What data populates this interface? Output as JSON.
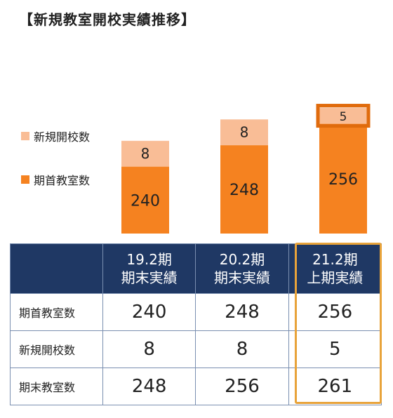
{
  "title": "【新規教室開校実績推移】",
  "colors": {
    "base": "#f58220",
    "new": "#f9bd96",
    "header": "#1f3864",
    "highlight": "#e8a33a",
    "highlight_bar": "#e06b0c"
  },
  "chart_data": {
    "type": "bar",
    "stacked": true,
    "categories": [
      "19.2期",
      "20.2期",
      "21.2期"
    ],
    "series": [
      {
        "name": "期首教室数",
        "values": [
          240,
          248,
          256
        ]
      },
      {
        "name": "新規開校数",
        "values": [
          8,
          8,
          5
        ]
      }
    ],
    "legend_position": "left",
    "grid": false,
    "highlight_index": 2
  },
  "legend": [
    {
      "label": "新規開校数",
      "color": "#f9bd96"
    },
    {
      "label": "期首教室数",
      "color": "#f58220"
    }
  ],
  "table": {
    "headers": [
      [
        "",
        ""
      ],
      [
        "19.2期",
        "期末実績"
      ],
      [
        "20.2期",
        "期末実績"
      ],
      [
        "21.2期",
        "上期実績"
      ]
    ],
    "rows": [
      {
        "label": "期首教室数",
        "values": [
          "240",
          "248",
          "256"
        ]
      },
      {
        "label": "新規開校数",
        "values": [
          "8",
          "8",
          "5"
        ]
      },
      {
        "label": "期末教室数",
        "values": [
          "248",
          "256",
          "261"
        ]
      }
    ]
  }
}
